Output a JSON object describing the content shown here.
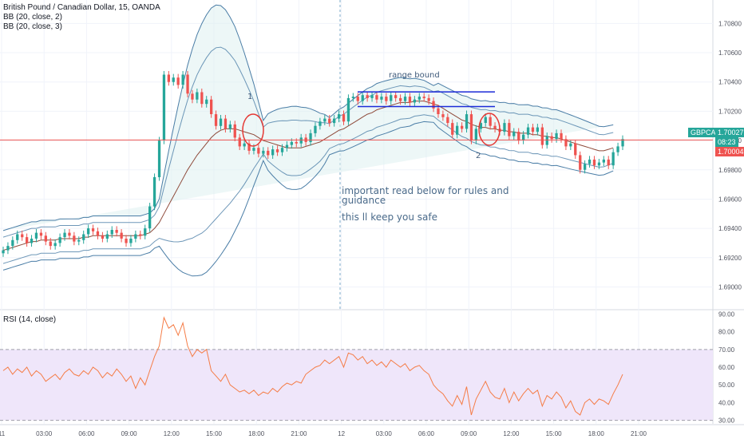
{
  "legend": {
    "symbol_line": "British Pound / Canadian Dollar, 15, OANDA",
    "indicator1": "BB (20, close, 2)",
    "indicator2": "BB (20, close, 3)",
    "rsi_label": "RSI (14, close)"
  },
  "annotations": {
    "range": "range bound",
    "point1": "1",
    "point2": "2",
    "note1": "important read below for rules and guidance",
    "note2": "this ll keep you safe"
  },
  "tickers": {
    "symbol": "GBPCAD",
    "price": "1.70027",
    "countdown": "08:23",
    "low": "1.70004"
  },
  "colors": {
    "up": "#26a69a",
    "down": "#ef5350",
    "band": "#4a7da6",
    "band_fill": "#dff0f0",
    "basis": "#8e4a3a",
    "hline": "#ef5350",
    "rsi": "#f57c46",
    "rsi_band": "#efe6fa",
    "trend": "#1c2bd8",
    "text_ann": "#3f5a7a"
  },
  "chart_data": [
    {
      "type": "line",
      "title": "British Pound / Canadian Dollar, 15, OANDA",
      "x_ticks": [
        "11",
        "03:00",
        "06:00",
        "09:00",
        "12:00",
        "15:00",
        "18:00",
        "21:00",
        "12",
        "03:00",
        "06:00",
        "09:00",
        "12:00",
        "15:00",
        "18:00",
        "21:00"
      ],
      "y_ticks": [
        "1.70800",
        "1.70600",
        "1.70400",
        "1.70200",
        "1.70000",
        "1.69800",
        "1.69600",
        "1.69400",
        "1.69200",
        "1.69000"
      ],
      "ylim": [
        1.6885,
        1.7096
      ],
      "series": [
        {
          "name": "Close",
          "values": [
            1.6925,
            1.6928,
            1.6932,
            1.6936,
            1.6934,
            1.693,
            1.6933,
            1.6937,
            1.6935,
            1.6931,
            1.6928,
            1.693,
            1.6934,
            1.6937,
            1.6935,
            1.6931,
            1.6932,
            1.6936,
            1.694,
            1.6938,
            1.6935,
            1.6933,
            1.6936,
            1.6939,
            1.6937,
            1.6933,
            1.693,
            1.6933,
            1.6936,
            1.6935,
            1.694,
            1.6955,
            1.6975,
            1.7,
            1.7045,
            1.704,
            1.7043,
            1.7038,
            1.7045,
            1.7032,
            1.7028,
            1.7033,
            1.7025,
            1.7028,
            1.7018,
            1.701,
            1.7015,
            1.7008,
            1.7011,
            1.7002,
            1.6996,
            1.6998,
            1.6993,
            1.6995,
            1.6991,
            1.6993,
            1.699,
            1.6994,
            1.6992,
            1.6995,
            1.6997,
            1.6999,
            1.6998,
            1.7002,
            1.6999,
            1.7005,
            1.701,
            1.7013,
            1.7015,
            1.7012,
            1.7015,
            1.7018,
            1.7013,
            1.7029,
            1.703,
            1.7027,
            1.7031,
            1.7029,
            1.7031,
            1.7028,
            1.703,
            1.7027,
            1.7031,
            1.7029,
            1.7027,
            1.703,
            1.7026,
            1.7028,
            1.703,
            1.7029,
            1.7027,
            1.7022,
            1.7018,
            1.7016,
            1.7012,
            1.7004,
            1.701,
            1.7008,
            1.7018,
            1.7,
            1.7008,
            1.7012,
            1.7016,
            1.701,
            1.7008,
            1.7006,
            1.7012,
            1.7003,
            1.7006,
            1.7,
            1.7004,
            1.7009,
            1.7006,
            1.7009,
            1.6997,
            1.7003,
            1.7001,
            1.7005,
            1.7001,
            1.6996,
            1.6998,
            1.699,
            1.698,
            1.6984,
            1.6987,
            1.6983,
            1.6985,
            1.6987,
            1.6983,
            1.6992,
            1.6996,
            1.7001
          ]
        },
        {
          "name": "Basis",
          "values": [
            1.6925,
            1.6926,
            1.6927,
            1.6928,
            1.6929,
            1.693,
            1.6931,
            1.6931,
            1.6932,
            1.6932,
            1.6932,
            1.6932,
            1.6933,
            1.6933,
            1.6933,
            1.6933,
            1.6933,
            1.6934,
            1.6934,
            1.6935,
            1.6935,
            1.6935,
            1.6935,
            1.6935,
            1.6935,
            1.6935,
            1.6935,
            1.6935,
            1.6935,
            1.6935,
            1.6936,
            1.6937,
            1.694,
            1.6944,
            1.695,
            1.6956,
            1.6962,
            1.6968,
            1.6974,
            1.698,
            1.6985,
            1.699,
            1.6994,
            1.6998,
            1.7002,
            1.7005,
            1.7007,
            1.7008,
            1.7008,
            1.7008,
            1.7007,
            1.7006,
            1.7005,
            1.7004,
            1.7002,
            1.7,
            1.6999,
            1.6998,
            1.6997,
            1.6996,
            1.6995,
            1.6995,
            1.6995,
            1.6995,
            1.6996,
            1.6997,
            1.6998,
            1.6999,
            1.7001,
            1.7003,
            1.7005,
            1.7007,
            1.7008,
            1.701,
            1.7012,
            1.7014,
            1.7016,
            1.7018,
            1.7019,
            1.7021,
            1.7022,
            1.7023,
            1.7024,
            1.7025,
            1.7026,
            1.7026,
            1.7026,
            1.7027,
            1.7027,
            1.7027,
            1.7026,
            1.7025,
            1.7024,
            1.7022,
            1.702,
            1.7018,
            1.7016,
            1.7014,
            1.7013,
            1.7011,
            1.701,
            1.7009,
            1.7009,
            1.7008,
            1.7008,
            1.7007,
            1.7007,
            1.7006,
            1.7006,
            1.7005,
            1.7005,
            1.7005,
            1.7004,
            1.7004,
            1.7003,
            1.7003,
            1.7002,
            1.7002,
            1.7001,
            1.7,
            1.6999,
            1.6998,
            1.6997,
            1.6996,
            1.6995,
            1.6994,
            1.6993,
            1.6993,
            1.6994,
            1.6995
          ]
        }
      ],
      "markers": {
        "horizontal_line": 1.70004,
        "range_line_upper": 1.70332,
        "range_line_lower": 1.70232
      }
    },
    {
      "type": "line",
      "title": "RSI (14, close)",
      "y_ticks": [
        "90.00",
        "80.00",
        "70.00",
        "60.00",
        "50.00",
        "40.00",
        "30.00"
      ],
      "ylim": [
        28,
        92
      ],
      "levels": [
        70,
        30
      ],
      "series": [
        {
          "name": "RSI",
          "values": [
            58,
            60,
            56,
            59,
            57,
            60,
            55,
            58,
            56,
            52,
            54,
            56,
            53,
            57,
            59,
            56,
            55,
            58,
            56,
            60,
            58,
            54,
            57,
            55,
            59,
            56,
            52,
            55,
            48,
            54,
            50,
            58,
            66,
            72,
            88,
            82,
            84,
            78,
            85,
            72,
            66,
            70,
            68,
            70,
            58,
            55,
            52,
            56,
            50,
            48,
            46,
            47,
            45,
            47,
            44,
            46,
            45,
            48,
            46,
            49,
            51,
            50,
            52,
            51,
            56,
            58,
            60,
            61,
            64,
            62,
            64,
            66,
            60,
            68,
            67,
            64,
            66,
            62,
            64,
            61,
            63,
            60,
            64,
            62,
            60,
            62,
            58,
            60,
            61,
            58,
            56,
            50,
            47,
            45,
            41,
            38,
            44,
            39,
            49,
            33,
            42,
            47,
            52,
            46,
            43,
            42,
            48,
            40,
            46,
            41,
            45,
            48,
            45,
            47,
            38,
            44,
            42,
            46,
            43,
            37,
            41,
            35,
            33,
            40,
            42,
            39,
            42,
            41,
            39,
            45,
            50,
            56
          ]
        }
      ]
    }
  ],
  "rsi_x_ticks": [
    "11",
    "03:00",
    "06:00",
    "09:00",
    "12:00",
    "15:00",
    "18:00",
    "21:00",
    "12",
    "03:00",
    "06:00",
    "09:00",
    "12:00",
    "15:00",
    "18:00",
    "21:00"
  ]
}
